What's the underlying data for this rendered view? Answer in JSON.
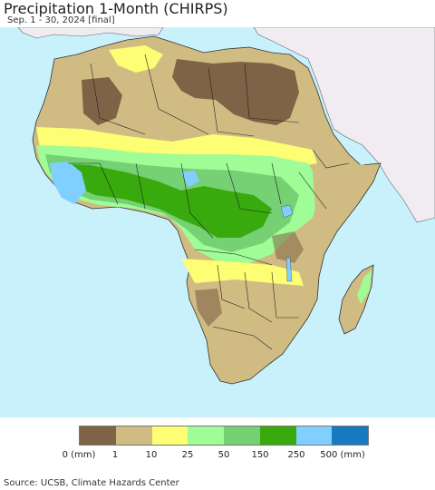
{
  "header": {
    "title": "Precipitation 1-Month (CHIRPS)",
    "subtitle": "Sep. 1 - 30, 2024 [final]"
  },
  "legend": {
    "colors": [
      "#7f6346",
      "#d0bc83",
      "#fdfe74",
      "#9ffc96",
      "#75d174",
      "#38aa0d",
      "#80cfff",
      "#1a79c3"
    ],
    "labels": [
      "0 (mm)",
      "1",
      "10",
      "25",
      "50",
      "150",
      "250",
      "500 (mm)"
    ]
  },
  "footer": {
    "source": "Source: UCSB, Climate Hazards Center"
  },
  "map": {
    "ocean_color": "#c9f1fb",
    "outside_land_color": "#f0ecf1"
  }
}
